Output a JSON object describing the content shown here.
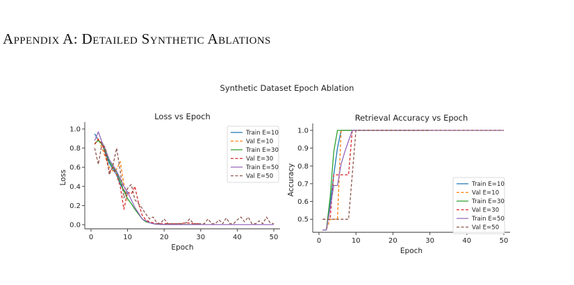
{
  "heading": "Appendix A: Detailed Synthetic Ablations",
  "figure_title": "Synthetic Dataset Epoch Ablation",
  "colors": {
    "blue": "#1f77b4",
    "orange": "#ff7f0e",
    "green": "#2ca02c",
    "red": "#d62728",
    "purple": "#9467bd",
    "brown": "#8c564b"
  },
  "chart_data": [
    {
      "type": "line",
      "title": "Loss vs Epoch",
      "xlabel": "Epoch",
      "ylabel": "Loss",
      "xlim": [
        0,
        50
      ],
      "ylim": [
        0,
        1.0
      ],
      "xticks": [
        0,
        10,
        20,
        30,
        40,
        50
      ],
      "yticks": [
        0.0,
        0.2,
        0.4,
        0.6,
        0.8,
        1.0
      ],
      "grid": false,
      "legend_position": "top-right",
      "series": [
        {
          "name": "Train E=10",
          "color": "#1f77b4",
          "dash": false,
          "x": [
            1,
            2,
            3,
            4,
            5,
            6,
            7,
            8,
            9,
            10
          ],
          "y": [
            0.95,
            0.88,
            0.85,
            0.74,
            0.64,
            0.58,
            0.52,
            0.42,
            0.36,
            0.32
          ]
        },
        {
          "name": "Val E=10",
          "color": "#ff7f0e",
          "dash": true,
          "x": [
            1,
            2,
            3,
            4,
            5,
            6,
            7,
            8,
            9,
            10
          ],
          "y": [
            0.84,
            0.9,
            0.8,
            0.7,
            0.6,
            0.56,
            0.58,
            0.66,
            0.42,
            0.25
          ]
        },
        {
          "name": "Train E=30",
          "color": "#2ca02c",
          "dash": false,
          "x": [
            1,
            2,
            3,
            4,
            5,
            6,
            7,
            8,
            9,
            10,
            11,
            12,
            13,
            14,
            15,
            16,
            17,
            18,
            19,
            20,
            22,
            24,
            26,
            28,
            30
          ],
          "y": [
            0.85,
            0.88,
            0.84,
            0.76,
            0.66,
            0.6,
            0.55,
            0.45,
            0.35,
            0.27,
            0.22,
            0.16,
            0.11,
            0.06,
            0.03,
            0.02,
            0.01,
            0.005,
            0.003,
            0.002,
            0.001,
            0.001,
            0.002,
            0.001,
            0.001
          ]
        },
        {
          "name": "Val E=30",
          "color": "#d62728",
          "dash": true,
          "x": [
            1,
            2,
            3,
            4,
            5,
            6,
            7,
            8,
            9,
            10,
            11,
            12,
            13,
            14,
            15,
            16,
            17,
            18,
            19,
            20,
            22,
            24,
            26,
            28,
            30
          ],
          "y": [
            0.84,
            0.89,
            0.85,
            0.72,
            0.55,
            0.6,
            0.52,
            0.4,
            0.16,
            0.34,
            0.32,
            0.4,
            0.22,
            0.1,
            0.05,
            0.03,
            0.02,
            0.01,
            0.01,
            0.01,
            0.01,
            0.01,
            0.02,
            0.01,
            0.01
          ]
        },
        {
          "name": "Train E=50",
          "color": "#9467bd",
          "dash": false,
          "x": [
            1,
            2,
            3,
            4,
            5,
            6,
            7,
            8,
            9,
            10,
            11,
            12,
            13,
            14,
            15,
            16,
            17,
            18,
            20,
            25,
            30,
            35,
            40,
            45,
            50
          ],
          "y": [
            0.88,
            0.97,
            0.86,
            0.78,
            0.68,
            0.62,
            0.56,
            0.48,
            0.4,
            0.34,
            0.26,
            0.18,
            0.12,
            0.06,
            0.04,
            0.02,
            0.01,
            0.005,
            0.002,
            0.001,
            0.001,
            0.001,
            0.001,
            0.001,
            0.001
          ]
        },
        {
          "name": "Val E=50",
          "color": "#8c564b",
          "dash": true,
          "x": [
            1,
            2,
            3,
            4,
            5,
            6,
            7,
            8,
            9,
            10,
            11,
            12,
            13,
            14,
            15,
            16,
            17,
            18,
            19,
            20,
            21,
            22,
            23,
            24,
            25,
            26,
            27,
            28,
            29,
            30,
            31,
            32,
            33,
            34,
            35,
            36,
            37,
            38,
            39,
            40,
            41,
            42,
            43,
            44,
            45,
            46,
            47,
            48,
            49,
            50
          ],
          "y": [
            0.8,
            0.63,
            0.85,
            0.8,
            0.52,
            0.62,
            0.8,
            0.56,
            0.28,
            0.38,
            0.42,
            0.26,
            0.22,
            0.17,
            0.11,
            0.06,
            0.08,
            0.02,
            0.01,
            0.06,
            0.01,
            0.01,
            0.01,
            0.01,
            0.01,
            0.02,
            0.06,
            0.01,
            0.01,
            0.01,
            0.01,
            0.06,
            0.01,
            0.01,
            0.05,
            0.01,
            0.07,
            0.01,
            0.01,
            0.05,
            0.08,
            0.03,
            0.08,
            0.01,
            0.01,
            0.04,
            0.01,
            0.08,
            0.02,
            0.01
          ]
        }
      ]
    },
    {
      "type": "line",
      "title": "Retrieval Accuracy vs Epoch",
      "xlabel": "Epoch",
      "ylabel": "Accuracy",
      "xlim": [
        0,
        50
      ],
      "ylim": [
        0.45,
        1.0
      ],
      "xticks": [
        0,
        10,
        20,
        30,
        40,
        50
      ],
      "yticks": [
        0.5,
        0.6,
        0.7,
        0.8,
        0.9,
        1.0
      ],
      "grid": false,
      "legend_position": "bottom-right",
      "series": [
        {
          "name": "Train E=10",
          "color": "#1f77b4",
          "dash": false,
          "x": [
            1,
            2,
            3,
            4,
            5,
            6,
            7,
            8,
            9,
            10
          ],
          "y": [
            0.44,
            0.44,
            0.58,
            0.75,
            0.9,
            1.0,
            1.0,
            1.0,
            1.0,
            1.0
          ]
        },
        {
          "name": "Val E=10",
          "color": "#ff7f0e",
          "dash": true,
          "x": [
            1,
            2,
            3,
            4,
            5,
            6,
            7,
            8,
            9,
            10
          ],
          "y": [
            0.44,
            0.44,
            0.5,
            0.5,
            0.5,
            1.0,
            1.0,
            1.0,
            1.0,
            1.0
          ]
        },
        {
          "name": "Train E=30",
          "color": "#2ca02c",
          "dash": false,
          "x": [
            1,
            2,
            3,
            4,
            5,
            6,
            7,
            8,
            9,
            10,
            15,
            20,
            25,
            30
          ],
          "y": [
            0.44,
            0.44,
            0.62,
            0.88,
            1.0,
            1.0,
            1.0,
            1.0,
            1.0,
            1.0,
            1.0,
            1.0,
            1.0,
            1.0
          ]
        },
        {
          "name": "Val E=30",
          "color": "#d62728",
          "dash": true,
          "x": [
            1,
            2,
            3,
            4,
            5,
            6,
            7,
            8,
            9,
            10,
            15,
            20,
            25,
            30
          ],
          "y": [
            0.5,
            0.5,
            0.5,
            0.75,
            0.75,
            0.75,
            0.75,
            0.75,
            1.0,
            1.0,
            1.0,
            1.0,
            1.0,
            1.0
          ]
        },
        {
          "name": "Train E=50",
          "color": "#9467bd",
          "dash": false,
          "x": [
            1,
            2,
            3,
            4,
            5,
            6,
            7,
            8,
            9,
            10,
            15,
            20,
            25,
            30,
            35,
            40,
            45,
            50
          ],
          "y": [
            0.44,
            0.44,
            0.56,
            0.69,
            0.69,
            0.81,
            0.88,
            0.94,
            1.0,
            1.0,
            1.0,
            1.0,
            1.0,
            1.0,
            1.0,
            1.0,
            1.0,
            1.0
          ]
        },
        {
          "name": "Val E=50",
          "color": "#8c564b",
          "dash": true,
          "x": [
            1,
            2,
            3,
            4,
            5,
            6,
            7,
            8,
            9,
            10,
            15,
            20,
            25,
            30,
            35,
            40,
            45,
            50
          ],
          "y": [
            0.5,
            0.5,
            0.5,
            0.5,
            0.5,
            0.5,
            0.5,
            0.5,
            0.75,
            1.0,
            1.0,
            1.0,
            1.0,
            1.0,
            1.0,
            1.0,
            1.0,
            1.0
          ]
        }
      ]
    }
  ]
}
